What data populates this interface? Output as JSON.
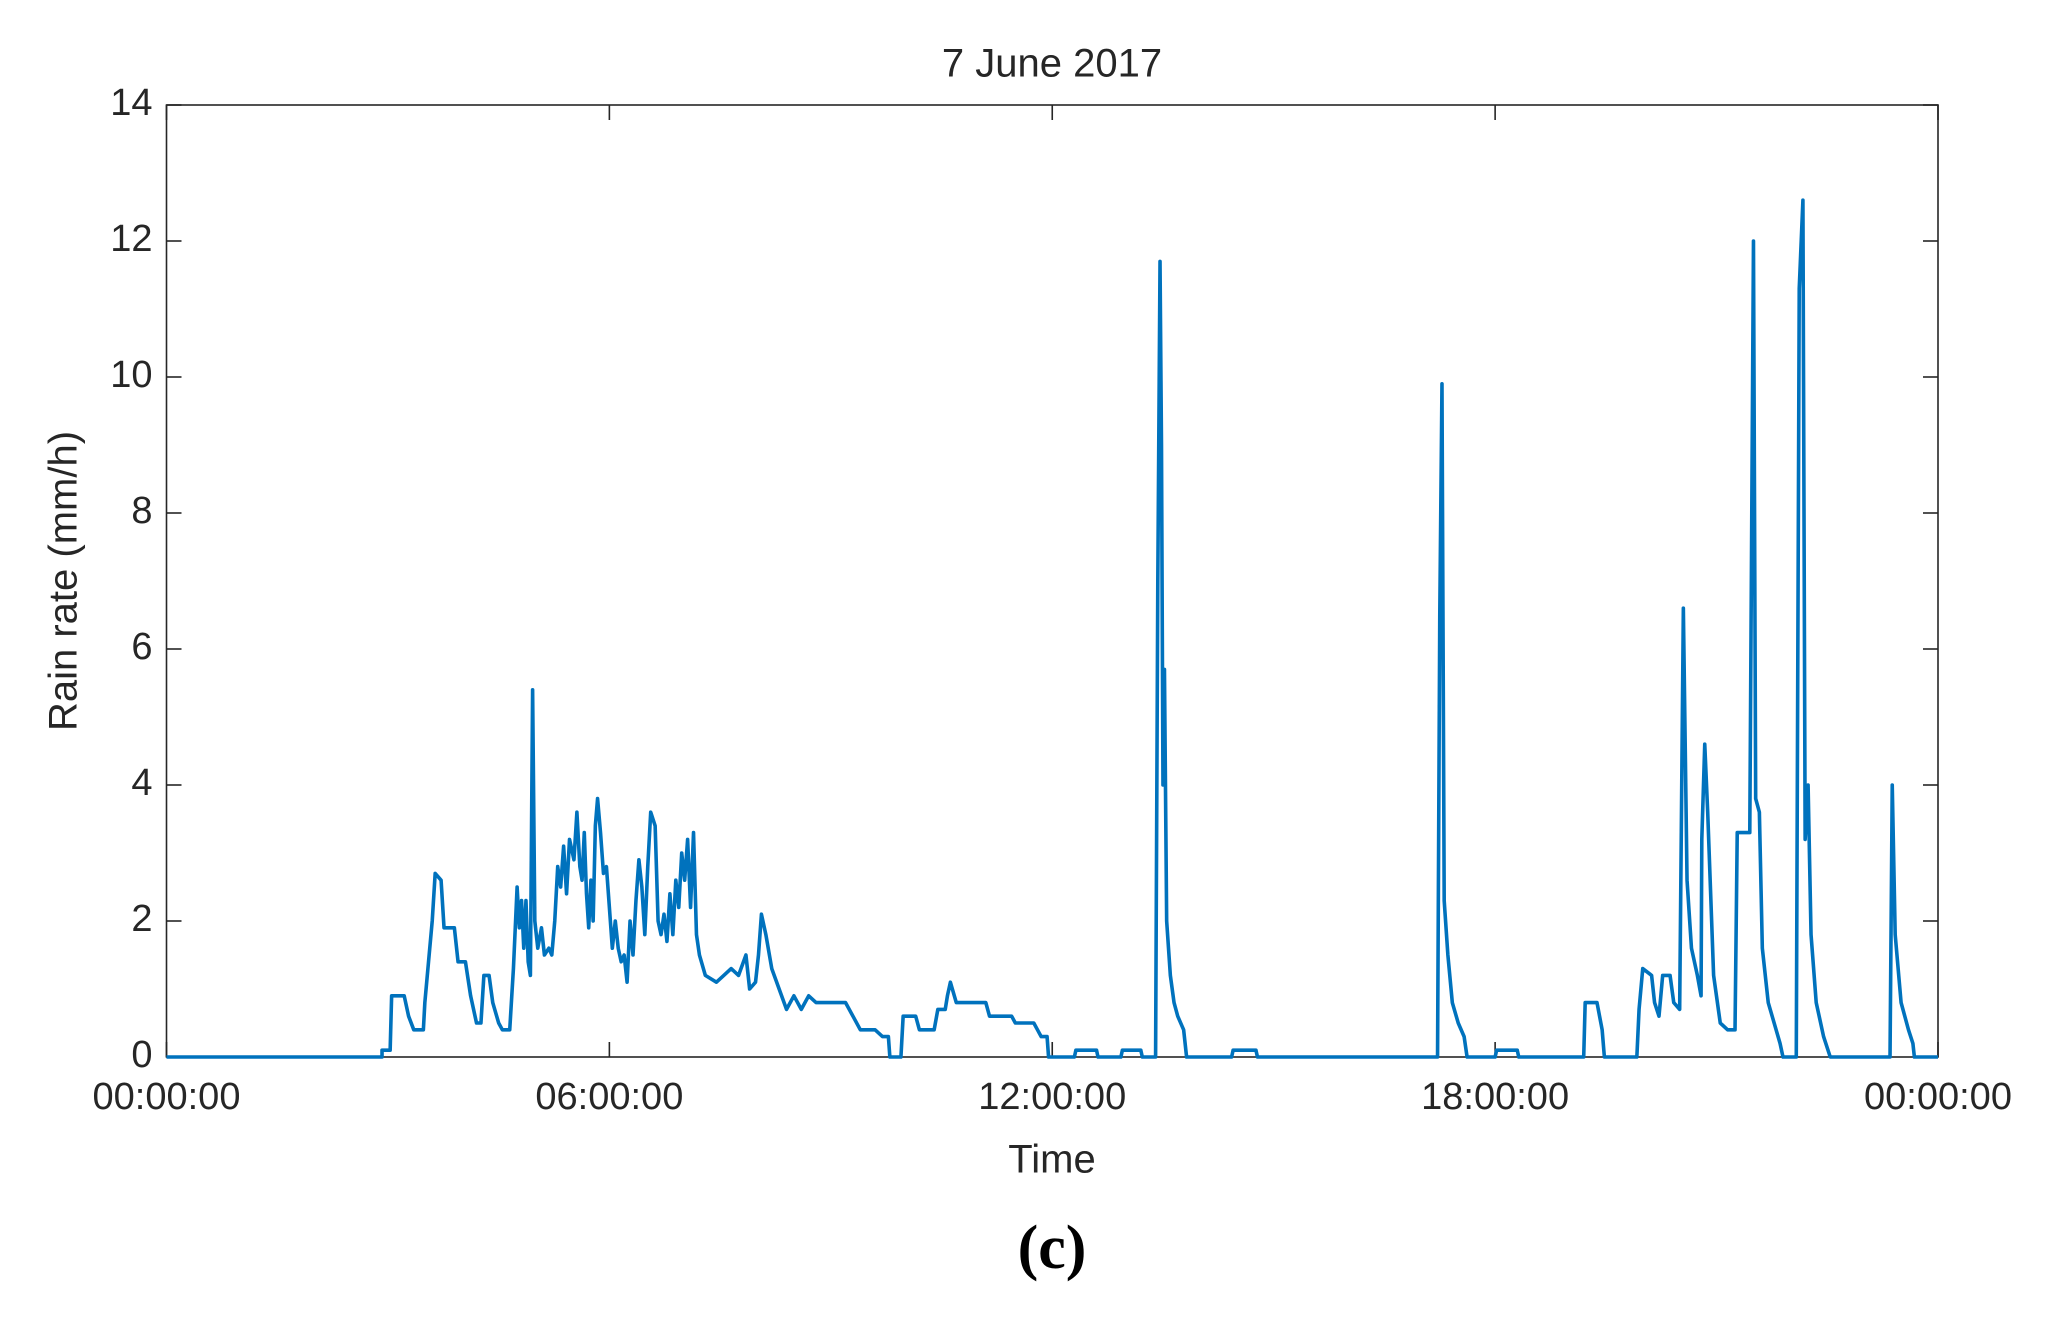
{
  "chart_data": {
    "type": "line",
    "title": "7 June 2017",
    "xlabel": "Time",
    "ylabel": "Rain rate (mm/h)",
    "panel_label": "(c)",
    "xlim": [
      0,
      24
    ],
    "xticks": [
      {
        "value": 0,
        "label": "00:00:00"
      },
      {
        "value": 6,
        "label": "06:00:00"
      },
      {
        "value": 12,
        "label": "12:00:00"
      },
      {
        "value": 18,
        "label": "18:00:00"
      },
      {
        "value": 24,
        "label": "00:00:00"
      }
    ],
    "ylim": [
      0,
      14
    ],
    "yticks": [
      0,
      2,
      4,
      6,
      8,
      10,
      12,
      14
    ],
    "grid": false,
    "series": [
      {
        "name": "Rain rate",
        "color": "#0072bd",
        "x": [
          0,
          2.92,
          2.92,
          3.03,
          3.05,
          3.22,
          3.28,
          3.35,
          3.48,
          3.5,
          3.55,
          3.6,
          3.64,
          3.72,
          3.76,
          3.9,
          3.95,
          4.05,
          4.12,
          4.2,
          4.26,
          4.3,
          4.37,
          4.42,
          4.5,
          4.55,
          4.65,
          4.7,
          4.75,
          4.78,
          4.81,
          4.84,
          4.87,
          4.9,
          4.93,
          4.96,
          4.99,
          5.03,
          5.08,
          5.12,
          5.18,
          5.22,
          5.26,
          5.3,
          5.34,
          5.38,
          5.42,
          5.46,
          5.52,
          5.56,
          5.6,
          5.63,
          5.66,
          5.69,
          5.72,
          5.75,
          5.78,
          5.81,
          5.84,
          5.88,
          5.92,
          5.96,
          6.0,
          6.04,
          6.08,
          6.12,
          6.16,
          6.2,
          6.24,
          6.28,
          6.32,
          6.36,
          6.4,
          6.44,
          6.48,
          6.52,
          6.56,
          6.62,
          6.66,
          6.7,
          6.74,
          6.78,
          6.82,
          6.86,
          6.9,
          6.94,
          6.98,
          7.02,
          7.06,
          7.1,
          7.14,
          7.18,
          7.22,
          7.3,
          7.45,
          7.55,
          7.65,
          7.75,
          7.85,
          7.9,
          7.98,
          8.02,
          8.06,
          8.12,
          8.2,
          8.3,
          8.4,
          8.5,
          8.6,
          8.7,
          8.8,
          9.2,
          9.3,
          9.4,
          9.6,
          9.7,
          9.78,
          9.8,
          9.95,
          9.98,
          10.15,
          10.2,
          10.4,
          10.45,
          10.55,
          10.58,
          10.62,
          10.7,
          11.1,
          11.15,
          11.45,
          11.5,
          11.75,
          11.8,
          11.85,
          11.93,
          11.95,
          12.3,
          12.32,
          12.6,
          12.62,
          12.93,
          12.95,
          13.2,
          13.22,
          13.4,
          13.43,
          13.46,
          13.48,
          13.5,
          13.52,
          13.55,
          13.6,
          13.65,
          13.7,
          13.78,
          13.82,
          14.43,
          14.45,
          14.76,
          14.78,
          17.22,
          17.25,
          17.28,
          17.31,
          17.36,
          17.42,
          17.5,
          17.58,
          17.62,
          18.0,
          18.02,
          18.3,
          18.32,
          19.2,
          19.22,
          19.38,
          19.45,
          19.48,
          19.92,
          19.95,
          20.0,
          20.12,
          20.16,
          20.22,
          20.27,
          20.37,
          20.42,
          20.5,
          20.55,
          20.6,
          20.66,
          20.74,
          20.79,
          20.8,
          20.84,
          20.88,
          20.96,
          21.05,
          21.15,
          21.25,
          21.28,
          21.45,
          21.5,
          21.53,
          21.58,
          21.62,
          21.7,
          21.78,
          21.86,
          21.9,
          22.08,
          22.12,
          22.17,
          22.2,
          22.24,
          22.28,
          22.35,
          22.45,
          22.54,
          23.35,
          23.38,
          23.42,
          23.5,
          23.6,
          23.66,
          23.68,
          24
        ],
        "values": [
          0,
          0,
          0.1,
          0.1,
          0.9,
          0.9,
          0.6,
          0.4,
          0.4,
          0.8,
          1.4,
          2.0,
          2.7,
          2.6,
          1.9,
          1.9,
          1.4,
          1.4,
          0.9,
          0.5,
          0.5,
          1.2,
          1.2,
          0.8,
          0.5,
          0.4,
          0.4,
          1.3,
          2.5,
          1.9,
          2.3,
          1.6,
          2.3,
          1.4,
          1.2,
          5.4,
          2.0,
          1.6,
          1.9,
          1.5,
          1.6,
          1.5,
          2.0,
          2.8,
          2.5,
          3.1,
          2.4,
          3.2,
          2.9,
          3.6,
          2.8,
          2.6,
          3.3,
          2.4,
          1.9,
          2.6,
          2.0,
          3.4,
          3.8,
          3.3,
          2.7,
          2.8,
          2.2,
          1.6,
          2.0,
          1.6,
          1.4,
          1.5,
          1.1,
          2.0,
          1.5,
          2.3,
          2.9,
          2.5,
          1.8,
          2.8,
          3.6,
          3.4,
          2.0,
          1.8,
          2.1,
          1.7,
          2.4,
          1.8,
          2.6,
          2.2,
          3.0,
          2.6,
          3.2,
          2.2,
          3.3,
          1.8,
          1.5,
          1.2,
          1.1,
          1.2,
          1.3,
          1.2,
          1.5,
          1.0,
          1.1,
          1.5,
          2.1,
          1.8,
          1.3,
          1.0,
          0.7,
          0.9,
          0.7,
          0.9,
          0.8,
          0.8,
          0.6,
          0.4,
          0.4,
          0.3,
          0.3,
          0,
          0,
          0.6,
          0.6,
          0.4,
          0.4,
          0.7,
          0.7,
          0.9,
          1.1,
          0.8,
          0.8,
          0.6,
          0.6,
          0.5,
          0.5,
          0.4,
          0.3,
          0.3,
          0,
          0,
          0.1,
          0.1,
          0,
          0,
          0.1,
          0.1,
          0,
          0,
          7.0,
          11.7,
          9.0,
          4.0,
          5.7,
          2.0,
          1.2,
          0.8,
          0.6,
          0.4,
          0,
          0,
          0.1,
          0.1,
          0,
          0,
          6.5,
          9.9,
          2.3,
          1.5,
          0.8,
          0.5,
          0.3,
          0,
          0,
          0.1,
          0.1,
          0,
          0,
          0.8,
          0.8,
          0.4,
          0,
          0,
          0.7,
          1.3,
          1.2,
          0.8,
          0.6,
          1.2,
          1.2,
          0.8,
          0.7,
          6.6,
          2.6,
          1.6,
          1.2,
          0.9,
          3.2,
          4.6,
          3.6,
          1.2,
          0.5,
          0.4,
          0.4,
          3.3,
          3.3,
          12.0,
          3.8,
          3.6,
          1.6,
          0.8,
          0.5,
          0.2,
          0,
          0,
          11.3,
          12.6,
          3.2,
          4.0,
          1.8,
          0.8,
          0.3,
          0,
          0,
          4.0,
          1.8,
          0.8,
          0.4,
          0.2,
          0,
          0
        ]
      }
    ]
  }
}
